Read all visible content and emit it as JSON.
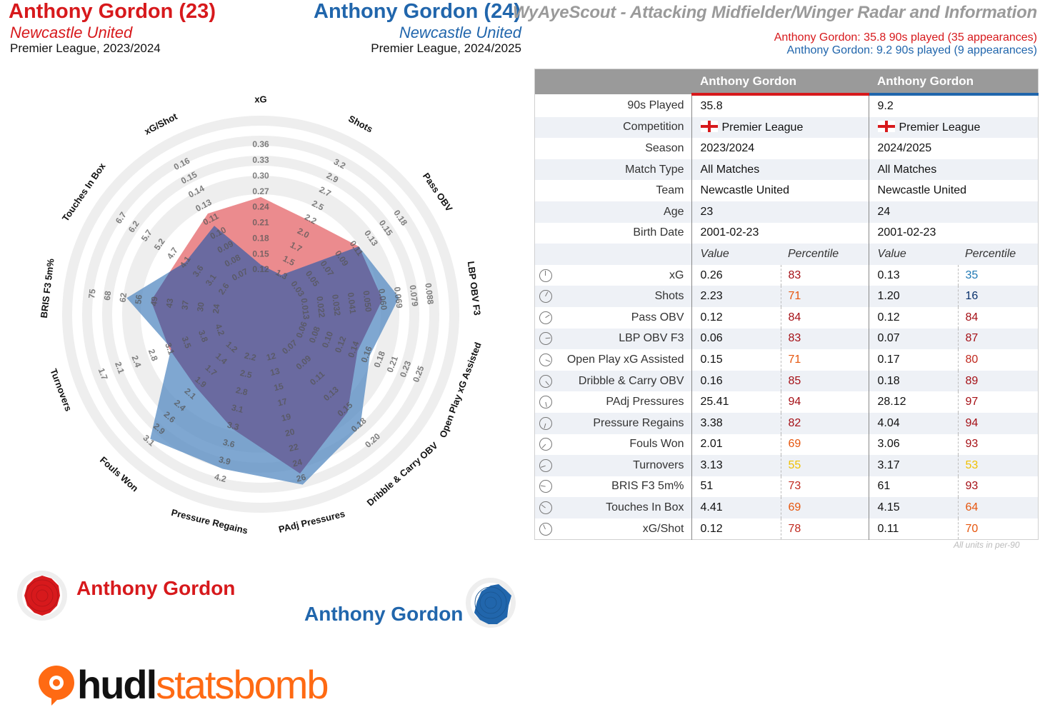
{
  "header": {
    "player1_name": "Anthony Gordon (23)",
    "player1_team": "Newcastle United",
    "player1_comp": "Premier League, 2023/2024",
    "player2_name": "Anthony Gordon (24)",
    "player2_team": "Newcastle United",
    "player2_comp": "Premier League, 2024/2025",
    "title": "WyAyeScout - Attacking Midfielder/Winger Radar and Information",
    "note1": "Anthony Gordon: 35.8 90s played (35 appearances)",
    "note2": "Anthony Gordon: 9.2 90s played (9 appearances)"
  },
  "colors": {
    "player1": "#d7191c",
    "player2": "#2166ac",
    "radar_fill1": "#e8777a",
    "radar_fill2": "#5b8ec4",
    "overlap": "#6a6aa0",
    "ring": "#eeeeee",
    "pct_dark_red": "#a50f15",
    "pct_orange": "#e6550d",
    "pct_yellow": "#f0c000",
    "pct_teal": "#1f78b4",
    "pct_navy": "#08306b"
  },
  "chart_data": {
    "type": "radar",
    "axes": [
      {
        "label": "xG",
        "ticks": [
          "0.12",
          "0.15",
          "0.18",
          "0.21",
          "0.24",
          "0.27",
          "0.30",
          "0.33",
          "0.36"
        ]
      },
      {
        "label": "Shots",
        "ticks": [
          "1.3",
          "1.5",
          "1.7",
          "2.0",
          "2.2",
          "2.5",
          "2.7",
          "2.9",
          "3.2"
        ]
      },
      {
        "label": "Pass OBV",
        "ticks": [
          "0.03",
          "0.05",
          "0.07",
          "0.09",
          "0.11",
          "0.13",
          "0.15",
          "0.18"
        ]
      },
      {
        "label": "LBP OBV F3",
        "ticks": [
          "0.013",
          "0.022",
          "0.032",
          "0.041",
          "0.050",
          "0.060",
          "0.069",
          "0.079",
          "0.088"
        ]
      },
      {
        "label": "Open Play xG Assisted",
        "ticks": [
          "0.06",
          "0.08",
          "0.10",
          "0.12",
          "0.14",
          "0.16",
          "0.18",
          "0.21",
          "0.23",
          "0.25"
        ]
      },
      {
        "label": "Dribble & Carry OBV",
        "ticks": [
          "0.07",
          "0.09",
          "0.11",
          "0.13",
          "0.15",
          "0.18",
          "0.20"
        ]
      },
      {
        "label": "PAdj Pressures",
        "ticks": [
          "12",
          "13",
          "15",
          "17",
          "19",
          "20",
          "22",
          "24",
          "26"
        ]
      },
      {
        "label": "Pressure Regains",
        "ticks": [
          "2.2",
          "2.5",
          "2.8",
          "3.1",
          "3.3",
          "3.6",
          "3.9",
          "4.2"
        ]
      },
      {
        "label": "Fouls Won",
        "ticks": [
          "1.2",
          "1.4",
          "1.7",
          "1.9",
          "2.1",
          "2.4",
          "2.6",
          "2.9",
          "3.1"
        ]
      },
      {
        "label": "Turnovers",
        "ticks": [
          "4.2",
          "3.8",
          "3.5",
          "3.1",
          "2.8",
          "2.4",
          "2.1",
          "1.7"
        ]
      },
      {
        "label": "BRIS F3 5m%",
        "ticks": [
          "24",
          "30",
          "37",
          "43",
          "49",
          "56",
          "62",
          "68",
          "75"
        ]
      },
      {
        "label": "Touches In Box",
        "ticks": [
          "2.6",
          "3.1",
          "3.6",
          "4.1",
          "4.7",
          "5.2",
          "5.7",
          "6.2",
          "6.7"
        ]
      },
      {
        "label": "xG/Shot",
        "ticks": [
          "0.07",
          "0.08",
          "0.09",
          "0.10",
          "0.11",
          "0.13",
          "0.14",
          "0.15",
          "0.16"
        ]
      }
    ],
    "series": [
      {
        "name": "Anthony Gordon",
        "values": [
          0.26,
          2.23,
          0.12,
          0.06,
          0.15,
          0.16,
          25.41,
          3.38,
          2.01,
          3.13,
          51,
          4.41,
          0.12
        ]
      },
      {
        "name": "Anthony Gordon",
        "values": [
          0.13,
          1.2,
          0.12,
          0.07,
          0.17,
          0.18,
          28.12,
          4.04,
          3.06,
          3.17,
          61,
          4.15,
          0.11
        ]
      }
    ]
  },
  "table": {
    "col1_header": "Anthony Gordon",
    "col2_header": "Anthony Gordon",
    "info_rows": [
      {
        "label": "90s Played",
        "v1": "35.8",
        "v2": "9.2"
      },
      {
        "label": "Competition",
        "v1": "Premier League",
        "v2": "Premier League"
      },
      {
        "label": "Season",
        "v1": "2023/2024",
        "v2": "2024/2025"
      },
      {
        "label": "Match Type",
        "v1": "All Matches",
        "v2": "All Matches"
      },
      {
        "label": "Team",
        "v1": "Newcastle United",
        "v2": "Newcastle United"
      },
      {
        "label": "Age",
        "v1": "23",
        "v2": "24"
      },
      {
        "label": "Birth Date",
        "v1": "2001-02-23",
        "v2": "2001-02-23"
      }
    ],
    "sub_value": "Value",
    "sub_percentile": "Percentile",
    "metric_rows": [
      {
        "label": "xG",
        "v1": "0.26",
        "p1": "83",
        "c1": "#a50f15",
        "v2": "0.13",
        "p2": "35",
        "c2": "#1f78b4"
      },
      {
        "label": "Shots",
        "v1": "2.23",
        "p1": "71",
        "c1": "#e6550d",
        "v2": "1.20",
        "p2": "16",
        "c2": "#08306b"
      },
      {
        "label": "Pass OBV",
        "v1": "0.12",
        "p1": "84",
        "c1": "#a50f15",
        "v2": "0.12",
        "p2": "84",
        "c2": "#a50f15"
      },
      {
        "label": "LBP OBV F3",
        "v1": "0.06",
        "p1": "83",
        "c1": "#a50f15",
        "v2": "0.07",
        "p2": "87",
        "c2": "#a50f15"
      },
      {
        "label": "Open Play xG Assisted",
        "v1": "0.15",
        "p1": "71",
        "c1": "#e6550d",
        "v2": "0.17",
        "p2": "80",
        "c2": "#c0281e"
      },
      {
        "label": "Dribble & Carry OBV",
        "v1": "0.16",
        "p1": "85",
        "c1": "#a50f15",
        "v2": "0.18",
        "p2": "89",
        "c2": "#a50f15"
      },
      {
        "label": "PAdj Pressures",
        "v1": "25.41",
        "p1": "94",
        "c1": "#a50f15",
        "v2": "28.12",
        "p2": "97",
        "c2": "#a50f15"
      },
      {
        "label": "Pressure Regains",
        "v1": "3.38",
        "p1": "82",
        "c1": "#a50f15",
        "v2": "4.04",
        "p2": "94",
        "c2": "#a50f15"
      },
      {
        "label": "Fouls Won",
        "v1": "2.01",
        "p1": "69",
        "c1": "#e6550d",
        "v2": "3.06",
        "p2": "93",
        "c2": "#a50f15"
      },
      {
        "label": "Turnovers",
        "v1": "3.13",
        "p1": "55",
        "c1": "#f0c000",
        "v2": "3.17",
        "p2": "53",
        "c2": "#f0c000"
      },
      {
        "label": "BRIS F3 5m%",
        "v1": "51",
        "p1": "73",
        "c1": "#c0281e",
        "v2": "61",
        "p2": "93",
        "c2": "#a50f15"
      },
      {
        "label": "Touches In Box",
        "v1": "4.41",
        "p1": "69",
        "c1": "#e6550d",
        "v2": "4.15",
        "p2": "64",
        "c2": "#e6550d"
      },
      {
        "label": "xG/Shot",
        "v1": "0.12",
        "p1": "78",
        "c1": "#c0281e",
        "v2": "0.11",
        "p2": "70",
        "c2": "#e6550d"
      }
    ],
    "units_note": "All units in per-90"
  },
  "legend": {
    "player1": "Anthony Gordon",
    "player2": "Anthony Gordon"
  },
  "logo": {
    "part1": "hudl",
    "part2": "statsbomb"
  }
}
